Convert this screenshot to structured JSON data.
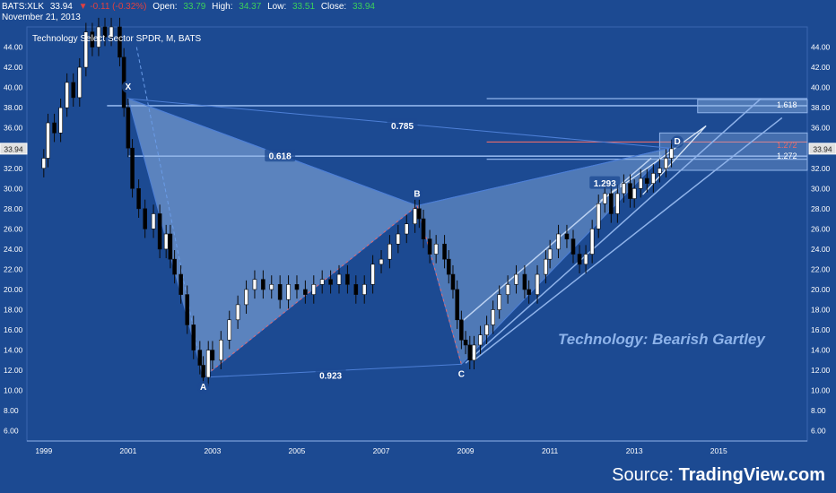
{
  "header": {
    "symbol": "BATS:XLK",
    "last": "33.94",
    "change": "▼ -0.11 (-0.32%)",
    "open_label": "Open:",
    "open": "33.79",
    "high_label": "High:",
    "high": "34.37",
    "low_label": "Low:",
    "low": "33.51",
    "close_label": "Close:",
    "close": "33.94",
    "date": "November 21, 2013"
  },
  "subtitle": "Technology Select Sector SPDR, M, BATS",
  "caption": "Technology: Bearish Gartley",
  "source_label": "Source:",
  "source_name": "TradingView.com",
  "colors": {
    "background": "#1c4a92",
    "candle_up": "#ffffff",
    "candle_down": "#000000",
    "pattern_fill": "#8fb3e2",
    "pattern_line": "#4d7fd6",
    "fib_line": "#8fb3ea",
    "red_dashed": "#e66a6a",
    "price_marker": "#e0e0e0"
  },
  "chart_data": {
    "type": "candlestick",
    "title": "Technology Select Sector SPDR, M, BATS",
    "xlim": [
      1998.6,
      2017.1
    ],
    "ylim": [
      5,
      46
    ],
    "x_ticks": [
      "1999",
      "2001",
      "2003",
      "2005",
      "2007",
      "2009",
      "2011",
      "2013",
      "2015"
    ],
    "y_ticks": [
      "6.00",
      "8.00",
      "10.00",
      "12.00",
      "14.00",
      "16.00",
      "18.00",
      "20.00",
      "22.00",
      "24.00",
      "26.00",
      "28.00",
      "30.00",
      "32.00",
      "34.00",
      "36.00",
      "38.00",
      "40.00",
      "42.00",
      "44.00"
    ],
    "last_price_label": "33.94",
    "close_series": [
      {
        "x": 1999.0,
        "y": 33.0
      },
      {
        "x": 1999.1,
        "y": 36.5
      },
      {
        "x": 1999.25,
        "y": 35.5
      },
      {
        "x": 1999.4,
        "y": 38.0
      },
      {
        "x": 1999.55,
        "y": 40.5
      },
      {
        "x": 1999.7,
        "y": 39.0
      },
      {
        "x": 1999.85,
        "y": 42.0
      },
      {
        "x": 2000.0,
        "y": 45.5
      },
      {
        "x": 2000.15,
        "y": 44.0
      },
      {
        "x": 2000.3,
        "y": 46.0
      },
      {
        "x": 2000.45,
        "y": 45.0
      },
      {
        "x": 2000.6,
        "y": 46.0
      },
      {
        "x": 2000.8,
        "y": 43.0
      },
      {
        "x": 2000.9,
        "y": 38.0
      },
      {
        "x": 2001.0,
        "y": 34.0
      },
      {
        "x": 2001.1,
        "y": 30.0
      },
      {
        "x": 2001.25,
        "y": 28.0
      },
      {
        "x": 2001.4,
        "y": 26.0
      },
      {
        "x": 2001.6,
        "y": 27.5
      },
      {
        "x": 2001.75,
        "y": 24.0
      },
      {
        "x": 2001.9,
        "y": 25.5
      },
      {
        "x": 2002.0,
        "y": 23.0
      },
      {
        "x": 2002.1,
        "y": 21.5
      },
      {
        "x": 2002.25,
        "y": 19.5
      },
      {
        "x": 2002.4,
        "y": 16.5
      },
      {
        "x": 2002.55,
        "y": 14.0
      },
      {
        "x": 2002.7,
        "y": 12.5
      },
      {
        "x": 2002.78,
        "y": 11.3
      },
      {
        "x": 2002.9,
        "y": 14.0
      },
      {
        "x": 2003.0,
        "y": 13.0
      },
      {
        "x": 2003.2,
        "y": 15.0
      },
      {
        "x": 2003.4,
        "y": 17.0
      },
      {
        "x": 2003.6,
        "y": 18.5
      },
      {
        "x": 2003.8,
        "y": 20.0
      },
      {
        "x": 2004.0,
        "y": 21.0
      },
      {
        "x": 2004.2,
        "y": 20.0
      },
      {
        "x": 2004.4,
        "y": 20.5
      },
      {
        "x": 2004.6,
        "y": 19.0
      },
      {
        "x": 2004.8,
        "y": 20.5
      },
      {
        "x": 2005.0,
        "y": 20.0
      },
      {
        "x": 2005.2,
        "y": 19.5
      },
      {
        "x": 2005.4,
        "y": 20.5
      },
      {
        "x": 2005.6,
        "y": 21.0
      },
      {
        "x": 2005.8,
        "y": 20.5
      },
      {
        "x": 2006.0,
        "y": 21.5
      },
      {
        "x": 2006.2,
        "y": 20.5
      },
      {
        "x": 2006.4,
        "y": 19.5
      },
      {
        "x": 2006.6,
        "y": 20.5
      },
      {
        "x": 2006.8,
        "y": 22.5
      },
      {
        "x": 2007.0,
        "y": 23.0
      },
      {
        "x": 2007.2,
        "y": 24.5
      },
      {
        "x": 2007.4,
        "y": 25.5
      },
      {
        "x": 2007.6,
        "y": 26.5
      },
      {
        "x": 2007.8,
        "y": 28.0
      },
      {
        "x": 2007.9,
        "y": 27.0
      },
      {
        "x": 2008.0,
        "y": 25.0
      },
      {
        "x": 2008.15,
        "y": 23.5
      },
      {
        "x": 2008.3,
        "y": 24.5
      },
      {
        "x": 2008.5,
        "y": 23.0
      },
      {
        "x": 2008.6,
        "y": 21.5
      },
      {
        "x": 2008.7,
        "y": 20.0
      },
      {
        "x": 2008.8,
        "y": 17.0
      },
      {
        "x": 2008.9,
        "y": 15.0
      },
      {
        "x": 2009.0,
        "y": 14.5
      },
      {
        "x": 2009.1,
        "y": 13.0
      },
      {
        "x": 2009.2,
        "y": 14.5
      },
      {
        "x": 2009.35,
        "y": 15.5
      },
      {
        "x": 2009.5,
        "y": 16.5
      },
      {
        "x": 2009.65,
        "y": 18.0
      },
      {
        "x": 2009.8,
        "y": 19.5
      },
      {
        "x": 2010.0,
        "y": 20.5
      },
      {
        "x": 2010.2,
        "y": 21.5
      },
      {
        "x": 2010.4,
        "y": 20.0
      },
      {
        "x": 2010.5,
        "y": 19.5
      },
      {
        "x": 2010.7,
        "y": 21.5
      },
      {
        "x": 2010.9,
        "y": 23.0
      },
      {
        "x": 2011.0,
        "y": 24.0
      },
      {
        "x": 2011.2,
        "y": 25.5
      },
      {
        "x": 2011.4,
        "y": 25.0
      },
      {
        "x": 2011.55,
        "y": 23.5
      },
      {
        "x": 2011.7,
        "y": 22.5
      },
      {
        "x": 2011.85,
        "y": 23.5
      },
      {
        "x": 2012.0,
        "y": 26.0
      },
      {
        "x": 2012.15,
        "y": 28.5
      },
      {
        "x": 2012.3,
        "y": 29.5
      },
      {
        "x": 2012.45,
        "y": 27.5
      },
      {
        "x": 2012.6,
        "y": 29.5
      },
      {
        "x": 2012.75,
        "y": 30.5
      },
      {
        "x": 2012.9,
        "y": 29.0
      },
      {
        "x": 2013.0,
        "y": 30.0
      },
      {
        "x": 2013.15,
        "y": 31.0
      },
      {
        "x": 2013.3,
        "y": 30.5
      },
      {
        "x": 2013.45,
        "y": 31.5
      },
      {
        "x": 2013.6,
        "y": 32.0
      },
      {
        "x": 2013.75,
        "y": 33.0
      },
      {
        "x": 2013.88,
        "y": 33.94
      }
    ],
    "pattern_points": [
      {
        "label": "X",
        "x": 2001.0,
        "y": 38.9
      },
      {
        "label": "A",
        "x": 2002.78,
        "y": 11.3
      },
      {
        "label": "B",
        "x": 2007.85,
        "y": 28.3
      },
      {
        "label": "C",
        "x": 2008.9,
        "y": 12.6
      },
      {
        "label": "D",
        "x": 2013.85,
        "y": 34.0
      }
    ],
    "ratio_labels": [
      {
        "text": "0.618",
        "x": 2004.6,
        "y": 33.2
      },
      {
        "text": "0.785",
        "x": 2007.5,
        "y": 36.2
      },
      {
        "text": "1.293",
        "x": 2012.3,
        "y": 30.5
      },
      {
        "text": "0.923",
        "x": 2005.8,
        "y": 11.5
      }
    ],
    "fib_levels": [
      {
        "label": "1.618",
        "value": 38.3
      },
      {
        "label": "1.272",
        "value": 33.2
      },
      {
        "label": "1.272",
        "value": 34.3
      }
    ]
  }
}
